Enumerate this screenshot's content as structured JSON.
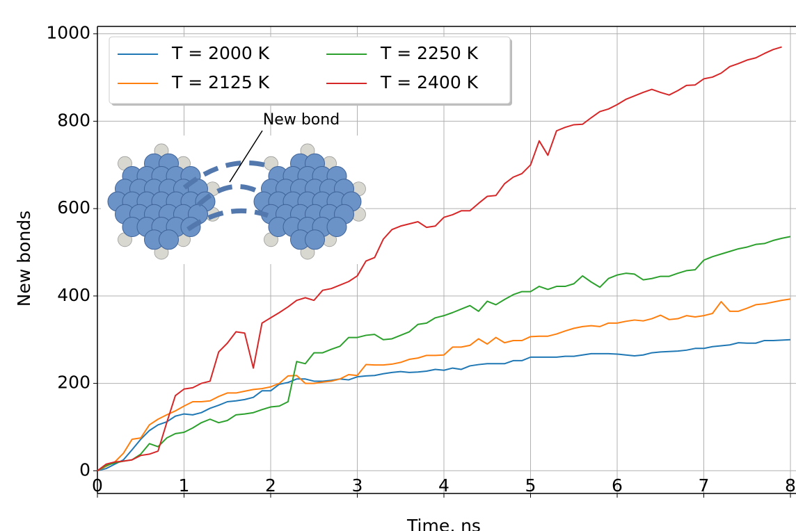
{
  "chart_data": {
    "type": "line",
    "xlabel": "Time, ns",
    "ylabel": "New bonds",
    "annotation": "New bond",
    "xlim": [
      0,
      8
    ],
    "ylim": [
      -52,
      1017
    ],
    "xticks": [
      0,
      1,
      2,
      3,
      4,
      5,
      6,
      7,
      8
    ],
    "yticks": [
      0,
      200,
      400,
      600,
      800,
      1000
    ],
    "grid": true,
    "legend": "upper left",
    "legend_columns": 2,
    "x": [
      0,
      0.1,
      0.2,
      0.3,
      0.4,
      0.5,
      0.6,
      0.7,
      0.8,
      0.9,
      1,
      1.1,
      1.2,
      1.3,
      1.4,
      1.5,
      1.6,
      1.7,
      1.8,
      1.9,
      2,
      2.1,
      2.2,
      2.3,
      2.4,
      2.5,
      2.6,
      2.7,
      2.8,
      2.9,
      3,
      3.1,
      3.2,
      3.3,
      3.4,
      3.5,
      3.6,
      3.7,
      3.8,
      3.9,
      4,
      4.1,
      4.2,
      4.3,
      4.4,
      4.5,
      4.6,
      4.7,
      4.8,
      4.9,
      5,
      5.1,
      5.2,
      5.3,
      5.4,
      5.5,
      5.6,
      5.7,
      5.8,
      5.9,
      6,
      6.1,
      6.2,
      6.3,
      6.4,
      6.5,
      6.6,
      6.7,
      6.8,
      6.9,
      7,
      7.1,
      7.2,
      7.3,
      7.4,
      7.5,
      7.6,
      7.7,
      7.8,
      7.9,
      8
    ],
    "series": [
      {
        "name": "T = 2000 K",
        "color": "#1f77b4",
        "values": [
          0,
          5,
          15,
          25,
          48,
          72,
          92,
          105,
          112,
          125,
          130,
          128,
          133,
          143,
          150,
          158,
          160,
          163,
          168,
          183,
          183,
          198,
          202,
          210,
          210,
          205,
          205,
          207,
          210,
          208,
          215,
          217,
          218,
          222,
          225,
          227,
          225,
          226,
          228,
          232,
          230,
          235,
          232,
          240,
          243,
          245,
          245,
          245,
          252,
          252,
          260,
          260,
          260,
          260,
          262,
          262,
          265,
          268,
          268,
          268,
          267,
          265,
          263,
          265,
          270,
          272,
          273,
          274,
          276,
          280,
          280,
          284,
          286,
          288,
          293,
          292,
          292,
          298,
          298,
          299,
          300
        ]
      },
      {
        "name": "T = 2125 K",
        "color": "#ff7f0e",
        "values": [
          0,
          10,
          20,
          40,
          72,
          75,
          105,
          118,
          128,
          137,
          148,
          158,
          158,
          160,
          170,
          178,
          178,
          182,
          186,
          188,
          192,
          200,
          217,
          218,
          200,
          200,
          203,
          205,
          210,
          220,
          218,
          243,
          242,
          242,
          244,
          248,
          255,
          258,
          264,
          264,
          265,
          283,
          283,
          287,
          302,
          290,
          305,
          293,
          298,
          298,
          307,
          308,
          308,
          313,
          320,
          326,
          330,
          332,
          330,
          338,
          338,
          342,
          345,
          343,
          348,
          356,
          346,
          348,
          355,
          352,
          355,
          360,
          387,
          365,
          365,
          372,
          380,
          382,
          386,
          390,
          393
        ]
      },
      {
        "name": "T = 2250 K",
        "color": "#2ca02c",
        "values": [
          0,
          12,
          18,
          22,
          25,
          38,
          62,
          55,
          75,
          85,
          88,
          98,
          110,
          118,
          110,
          115,
          128,
          130,
          133,
          140,
          146,
          148,
          158,
          250,
          245,
          270,
          270,
          278,
          285,
          305,
          305,
          310,
          312,
          300,
          302,
          310,
          318,
          335,
          338,
          350,
          355,
          362,
          370,
          378,
          365,
          388,
          380,
          392,
          403,
          410,
          410,
          422,
          415,
          422,
          422,
          428,
          446,
          432,
          420,
          440,
          448,
          452,
          450,
          437,
          440,
          445,
          445,
          452,
          458,
          460,
          482,
          490,
          496,
          502,
          508,
          512,
          518,
          520,
          527,
          532,
          536
        ]
      },
      {
        "name": "T = 2400 K",
        "color": "#d62728",
        "values": [
          0,
          15,
          20,
          22,
          25,
          35,
          38,
          45,
          110,
          172,
          187,
          190,
          200,
          205,
          272,
          292,
          318,
          315,
          235,
          338,
          350,
          362,
          375,
          390,
          396,
          390,
          413,
          417,
          425,
          433,
          446,
          480,
          488,
          530,
          552,
          560,
          565,
          570,
          557,
          560,
          580,
          586,
          595,
          595,
          612,
          628,
          630,
          657,
          672,
          680,
          700,
          755,
          722,
          778,
          786,
          792,
          793,
          808,
          822,
          828,
          838,
          850,
          858,
          866,
          873,
          866,
          860,
          870,
          882,
          883,
          897,
          901,
          910,
          925,
          932,
          940,
          945,
          955,
          964,
          970,
          null
        ]
      }
    ]
  }
}
